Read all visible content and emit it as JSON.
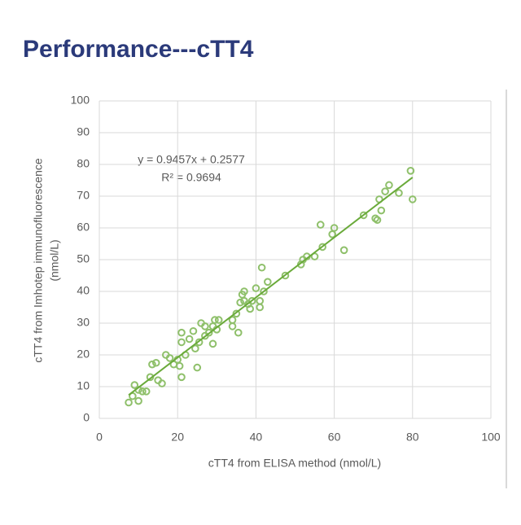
{
  "chart_data": {
    "type": "scatter",
    "title": "Performance---cTT4",
    "x": [
      7.5,
      8.5,
      9,
      10,
      10,
      11,
      12,
      13,
      13.5,
      14.5,
      15,
      16,
      17,
      18,
      19,
      20,
      20.5,
      21,
      21,
      21,
      22,
      23,
      24,
      24.5,
      25,
      25.5,
      26,
      27,
      27,
      28,
      29,
      29,
      29.5,
      30,
      30.5,
      34,
      34,
      35,
      35.5,
      36,
      36.5,
      37,
      37,
      38,
      38.5,
      39,
      40,
      41,
      41,
      41.5,
      42,
      43,
      47.5,
      51.5,
      52,
      53,
      55,
      56.5,
      57,
      59.5,
      60,
      62.5,
      67.5,
      70.5,
      71,
      71.5,
      72,
      73,
      74,
      76.5,
      79.5,
      80
    ],
    "values": [
      5,
      7,
      10.5,
      5.5,
      9,
      8.5,
      8.5,
      13,
      17,
      17.5,
      12,
      11,
      20,
      19,
      17,
      18.5,
      16.5,
      13,
      24,
      27,
      20,
      25,
      27.5,
      22,
      16,
      24,
      30,
      29,
      26,
      27,
      23.5,
      29,
      31,
      28,
      31,
      29,
      31,
      33,
      27,
      36.5,
      39,
      40,
      37,
      36,
      34.5,
      37,
      41,
      37,
      35,
      47.5,
      40,
      43,
      45,
      48.5,
      50,
      51,
      51,
      61,
      54,
      58,
      60,
      53,
      64,
      63,
      62.5,
      69,
      65.5,
      71.5,
      73.5,
      71,
      78,
      69
    ],
    "color": "#8fc06b",
    "trendline": {
      "slope": 0.9457,
      "intercept": 0.2577,
      "xrange": [
        7.5,
        80
      ],
      "color": "#6aaa3a"
    },
    "annotations": [
      "y = 0.9457x + 0.2577",
      "R² = 0.9694"
    ],
    "x_label": "cTT4 from ELISA method (nmol/L)",
    "y_label": [
      "cTT4 from Imhotep immunofluorescence",
      "(nmol/L)"
    ],
    "xlim": [
      0,
      100
    ],
    "xticks": [
      0,
      20,
      40,
      60,
      80,
      100
    ],
    "ylim": [
      0,
      100
    ],
    "yticks": [
      0,
      10,
      20,
      30,
      40,
      50,
      60,
      70,
      80,
      90,
      100
    ],
    "grid": true
  }
}
